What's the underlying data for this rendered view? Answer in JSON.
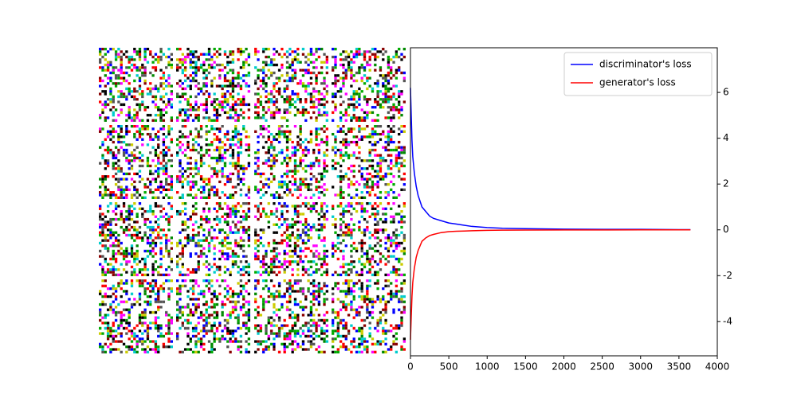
{
  "chart_data": {
    "type": "line",
    "x": [
      0,
      10,
      20,
      30,
      50,
      75,
      100,
      150,
      200,
      250,
      300,
      400,
      500,
      600,
      700,
      800,
      1000,
      1200,
      1500,
      2000,
      2500,
      3000,
      3500,
      3650
    ],
    "series": [
      {
        "name": "discriminator's loss",
        "color": "#0000ff",
        "values": [
          6.2,
          5.0,
          3.9,
          3.2,
          2.5,
          1.9,
          1.5,
          1.0,
          0.8,
          0.6,
          0.5,
          0.4,
          0.3,
          0.25,
          0.2,
          0.15,
          0.1,
          0.07,
          0.05,
          0.03,
          0.02,
          0.02,
          0.01,
          0.01
        ]
      },
      {
        "name": "generator's loss",
        "color": "#ff0000",
        "values": [
          -4.8,
          -3.8,
          -2.9,
          -2.3,
          -1.7,
          -1.2,
          -0.9,
          -0.5,
          -0.35,
          -0.25,
          -0.2,
          -0.12,
          -0.08,
          -0.06,
          -0.05,
          -0.04,
          -0.02,
          -0.015,
          -0.01,
          -0.005,
          -0.003,
          -0.002,
          -0.001,
          -0.001
        ]
      }
    ],
    "xlim": [
      0,
      4000
    ],
    "xticks": [
      0,
      500,
      1000,
      1500,
      2000,
      2500,
      3000,
      3500,
      4000
    ],
    "ylim": [
      -5.5,
      7.95
    ],
    "yticks": [
      -4,
      -2,
      0,
      2,
      4,
      6
    ],
    "legend": "upper right"
  }
}
